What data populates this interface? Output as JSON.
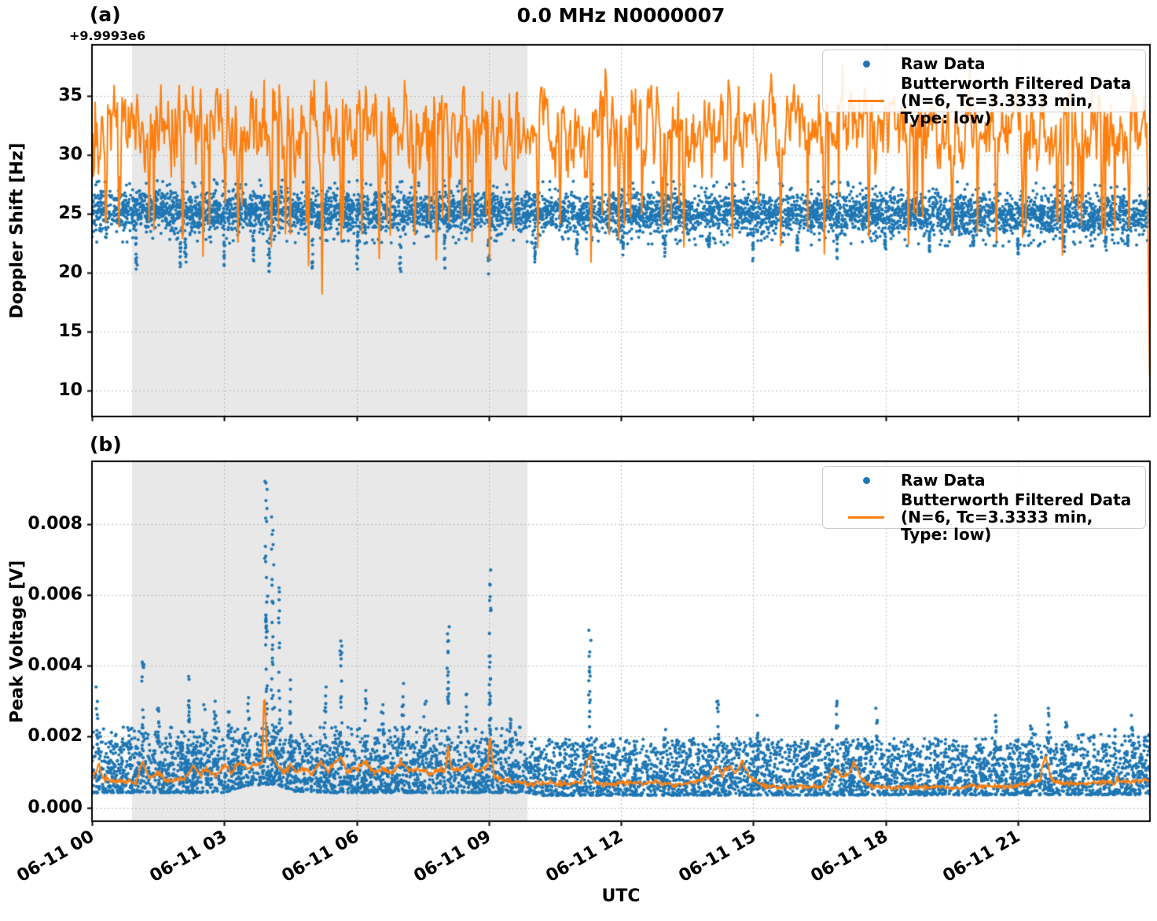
{
  "title": "0.0 MHz N0000007",
  "xlabel": "UTC",
  "legend": {
    "position": "upper right",
    "raw_label": "Raw Data",
    "filtered_label_line1": "Butterworth Filtered Data",
    "filtered_label_line2": "(N=6, Tc=3.3333 min, Type: low)"
  },
  "colors": {
    "raw": "#1f77b4",
    "filtered": "#ff7f0e",
    "shade": "#e8e8e8",
    "grid": "#b8b8b8",
    "spine": "#000000",
    "legend_border": "#cccccc",
    "text": "#000000"
  },
  "x_axis": {
    "range_hours": [
      0,
      24
    ],
    "tick_hours": [
      0,
      3,
      6,
      9,
      12,
      15,
      18,
      21
    ],
    "tick_labels": [
      "06-11 00",
      "06-11 03",
      "06-11 06",
      "06-11 09",
      "06-11 12",
      "06-11 15",
      "06-11 18",
      "06-11 21"
    ]
  },
  "chart_data": [
    {
      "id": "a",
      "panel_label": "(a)",
      "type": "scatter+line",
      "title": "0.0 MHz N0000007",
      "ylabel": "Doppler Shift [Hz]",
      "offset_text": "+9.9993e6",
      "yticks": [
        10,
        15,
        20,
        25,
        30,
        35
      ],
      "ytick_labels": [
        "10",
        "15",
        "20",
        "25",
        "30",
        "35"
      ],
      "ylim": [
        7.8,
        39.3
      ],
      "xlim_hours": [
        0,
        24
      ],
      "grid": "dotted",
      "shaded_region_hours": [
        0.91,
        9.88
      ],
      "series": [
        {
          "name": "Raw Data",
          "kind": "scatter",
          "band_center": 25.2,
          "band_halfwidth": 2.1,
          "center_drift_per_hour": -0.012,
          "dip_columns": [
            [
              1.0,
              20.3
            ],
            [
              2.0,
              20.5
            ],
            [
              2.12,
              20.9
            ],
            [
              3.0,
              20.6
            ],
            [
              3.66,
              21.0
            ],
            [
              4.02,
              20.1
            ],
            [
              5.0,
              20.4
            ],
            [
              6.02,
              20.3
            ],
            [
              7.0,
              20.1
            ],
            [
              8.0,
              20.4
            ],
            [
              9.0,
              19.9
            ],
            [
              10.05,
              20.9
            ],
            [
              11.0,
              21.6
            ],
            [
              12.05,
              21.5
            ],
            [
              13.0,
              21.4
            ],
            [
              14.0,
              22.2
            ],
            [
              15.0,
              21.0
            ],
            [
              16.0,
              21.9
            ],
            [
              16.9,
              21.2
            ],
            [
              18.0,
              22.0
            ],
            [
              19.0,
              21.8
            ],
            [
              20.0,
              22.3
            ],
            [
              21.0,
              21.6
            ],
            [
              22.05,
              21.8
            ],
            [
              23.0,
              21.9
            ],
            [
              23.5,
              22.3
            ]
          ]
        },
        {
          "name": "Butterworth Filtered Data (N=6, Tc=3.3333 min, Type: low)",
          "kind": "line",
          "mean": 32.35,
          "noise_sd": 1.85,
          "range": [
            28.0,
            37.7
          ],
          "major_dips": [
            [
              0.32,
              24.6
            ],
            [
              0.62,
              23.9
            ],
            [
              1.3,
              24.4
            ],
            [
              2.05,
              22.9
            ],
            [
              2.52,
              21.4
            ],
            [
              3.32,
              22.6
            ],
            [
              4.06,
              22.2
            ],
            [
              4.4,
              23.3
            ],
            [
              4.92,
              20.6
            ],
            [
              5.22,
              18.2
            ],
            [
              5.65,
              22.8
            ],
            [
              6.12,
              23.3
            ],
            [
              6.52,
              21.2
            ],
            [
              7.32,
              23.2
            ],
            [
              7.82,
              21.1
            ],
            [
              8.62,
              22.6
            ],
            [
              9.02,
              21.1
            ],
            [
              9.55,
              23.6
            ],
            [
              10.12,
              22.1
            ],
            [
              10.62,
              24.2
            ],
            [
              11.32,
              20.9
            ],
            [
              11.95,
              22.9
            ],
            [
              12.92,
              23.8
            ],
            [
              13.42,
              22.2
            ],
            [
              14.52,
              23.0
            ],
            [
              15.62,
              22.3
            ],
            [
              16.62,
              21.6
            ],
            [
              17.62,
              23.1
            ],
            [
              18.52,
              22.4
            ],
            [
              19.52,
              23.3
            ],
            [
              20.52,
              22.7
            ],
            [
              21.12,
              23.0
            ],
            [
              22.02,
              21.5
            ],
            [
              22.92,
              23.4
            ],
            [
              23.52,
              23.8
            ]
          ],
          "end_drop": [
            23.93,
            9.3
          ]
        }
      ]
    },
    {
      "id": "b",
      "panel_label": "(b)",
      "type": "scatter+line",
      "ylabel": "Peak Voltage [V]",
      "yticks": [
        0.0,
        0.002,
        0.004,
        0.006,
        0.008
      ],
      "ytick_labels": [
        "0.000",
        "0.002",
        "0.004",
        "0.006",
        "0.008"
      ],
      "ylim": [
        -0.0004,
        0.0098
      ],
      "xlim_hours": [
        0,
        24
      ],
      "grid": "dotted",
      "shaded_region_hours": [
        0.91,
        9.88
      ],
      "series": [
        {
          "name": "Raw Data",
          "kind": "scatter",
          "band_bottom": 0.00042,
          "band_top": 0.002,
          "lower_envelope_bumps": [
            [
              0,
              8e-05
            ],
            [
              3.0,
              8e-05
            ],
            [
              3.5,
              0.00028
            ],
            [
              4.15,
              0.00032
            ],
            [
              4.6,
              0.00012
            ],
            [
              5.5,
              8e-05
            ],
            [
              9.9,
              8e-05
            ],
            [
              10.2,
              0.0
            ],
            [
              24,
              2e-05
            ]
          ],
          "spike_columns": [
            [
              0.12,
              0.0034,
              10
            ],
            [
              1.15,
              0.0041,
              16
            ],
            [
              1.5,
              0.0028,
              8
            ],
            [
              2.2,
              0.0037,
              14
            ],
            [
              2.55,
              0.0029,
              8
            ],
            [
              2.8,
              0.003,
              10
            ],
            [
              3.1,
              0.0027,
              8
            ],
            [
              3.55,
              0.0031,
              8
            ],
            [
              3.95,
              0.0092,
              40
            ],
            [
              4.1,
              0.0082,
              28
            ],
            [
              4.25,
              0.0062,
              16
            ],
            [
              4.5,
              0.0036,
              10
            ],
            [
              5.3,
              0.0034,
              10
            ],
            [
              5.65,
              0.0047,
              16
            ],
            [
              6.2,
              0.0033,
              10
            ],
            [
              6.6,
              0.0029,
              8
            ],
            [
              7.05,
              0.0035,
              12
            ],
            [
              7.55,
              0.003,
              8
            ],
            [
              8.08,
              0.0051,
              18
            ],
            [
              8.5,
              0.0032,
              8
            ],
            [
              9.03,
              0.0067,
              30
            ],
            [
              9.5,
              0.0025,
              6
            ],
            [
              11.29,
              0.005,
              18
            ],
            [
              13.0,
              0.0022,
              5
            ],
            [
              14.2,
              0.003,
              9
            ],
            [
              15.1,
              0.0026,
              7
            ],
            [
              16.9,
              0.003,
              9
            ],
            [
              17.8,
              0.0028,
              8
            ],
            [
              20.5,
              0.0026,
              7
            ],
            [
              21.3,
              0.0023,
              6
            ],
            [
              21.7,
              0.0028,
              10
            ],
            [
              22.1,
              0.0024,
              6
            ],
            [
              23.2,
              0.0022,
              5
            ],
            [
              23.6,
              0.0026,
              8
            ]
          ]
        },
        {
          "name": "Butterworth Filtered Data (N=6, Tc=3.3333 min, Type: low)",
          "kind": "line",
          "keypoints": [
            [
              0,
              0.00075
            ],
            [
              0.15,
              0.0012
            ],
            [
              0.25,
              0.0008
            ],
            [
              0.6,
              0.00075
            ],
            [
              1.0,
              0.0007
            ],
            [
              1.15,
              0.0013
            ],
            [
              1.3,
              0.0008
            ],
            [
              1.5,
              0.001
            ],
            [
              1.7,
              0.00075
            ],
            [
              2.1,
              0.0008
            ],
            [
              2.3,
              0.0012
            ],
            [
              2.45,
              0.0009
            ],
            [
              2.6,
              0.0011
            ],
            [
              2.8,
              0.00085
            ],
            [
              3.0,
              0.0012
            ],
            [
              3.15,
              0.001
            ],
            [
              3.35,
              0.0013
            ],
            [
              3.55,
              0.0011
            ],
            [
              3.7,
              0.0012
            ],
            [
              3.86,
              0.0013
            ],
            [
              3.91,
              0.0034
            ],
            [
              3.97,
              0.0014
            ],
            [
              4.1,
              0.0016
            ],
            [
              4.2,
              0.0012
            ],
            [
              4.35,
              0.001
            ],
            [
              4.5,
              0.0012
            ],
            [
              4.65,
              0.001
            ],
            [
              4.8,
              0.0011
            ],
            [
              5.0,
              0.00095
            ],
            [
              5.2,
              0.0013
            ],
            [
              5.35,
              0.001
            ],
            [
              5.5,
              0.0013
            ],
            [
              5.65,
              0.0014
            ],
            [
              5.8,
              0.001
            ],
            [
              6.0,
              0.0011
            ],
            [
              6.2,
              0.0013
            ],
            [
              6.4,
              0.001
            ],
            [
              6.6,
              0.0011
            ],
            [
              6.8,
              0.00095
            ],
            [
              7.0,
              0.0013
            ],
            [
              7.2,
              0.001
            ],
            [
              7.4,
              0.0011
            ],
            [
              7.6,
              0.00095
            ],
            [
              7.8,
              0.001
            ],
            [
              8.03,
              0.0011
            ],
            [
              8.08,
              0.0017
            ],
            [
              8.15,
              0.0011
            ],
            [
              8.35,
              0.00105
            ],
            [
              8.55,
              0.0012
            ],
            [
              8.75,
              0.001
            ],
            [
              8.98,
              0.0012
            ],
            [
              9.03,
              0.0021
            ],
            [
              9.12,
              0.0009
            ],
            [
              9.3,
              0.0008
            ],
            [
              9.6,
              0.00072
            ],
            [
              10.0,
              0.00065
            ],
            [
              10.4,
              0.0007
            ],
            [
              10.8,
              0.00065
            ],
            [
              11.1,
              0.0007
            ],
            [
              11.22,
              0.0012
            ],
            [
              11.29,
              0.0015
            ],
            [
              11.38,
              0.0007
            ],
            [
              11.7,
              0.00065
            ],
            [
              12.0,
              0.0007
            ],
            [
              12.4,
              0.00068
            ],
            [
              12.8,
              0.00072
            ],
            [
              13.2,
              0.00065
            ],
            [
              13.6,
              0.0007
            ],
            [
              14.0,
              0.00085
            ],
            [
              14.15,
              0.0012
            ],
            [
              14.3,
              0.0009
            ],
            [
              14.45,
              0.0012
            ],
            [
              14.6,
              0.00095
            ],
            [
              14.75,
              0.0013
            ],
            [
              14.9,
              0.0009
            ],
            [
              15.1,
              0.0007
            ],
            [
              15.4,
              0.0006
            ],
            [
              15.8,
              0.00058
            ],
            [
              16.2,
              0.0006
            ],
            [
              16.55,
              0.00058
            ],
            [
              16.85,
              0.0011
            ],
            [
              17.0,
              0.00085
            ],
            [
              17.15,
              0.0009
            ],
            [
              17.3,
              0.0013
            ],
            [
              17.45,
              0.0008
            ],
            [
              17.7,
              0.0006
            ],
            [
              18.1,
              0.00055
            ],
            [
              18.5,
              0.00057
            ],
            [
              19.0,
              0.0006
            ],
            [
              19.5,
              0.00055
            ],
            [
              20.0,
              0.0006
            ],
            [
              20.4,
              0.00058
            ],
            [
              20.8,
              0.0006
            ],
            [
              21.2,
              0.00065
            ],
            [
              21.5,
              0.0008
            ],
            [
              21.62,
              0.0015
            ],
            [
              21.75,
              0.0008
            ],
            [
              22.0,
              0.00065
            ],
            [
              22.4,
              0.00068
            ],
            [
              22.8,
              0.0007
            ],
            [
              23.2,
              0.00072
            ],
            [
              23.6,
              0.00075
            ],
            [
              24,
              0.0008
            ]
          ]
        }
      ]
    }
  ]
}
